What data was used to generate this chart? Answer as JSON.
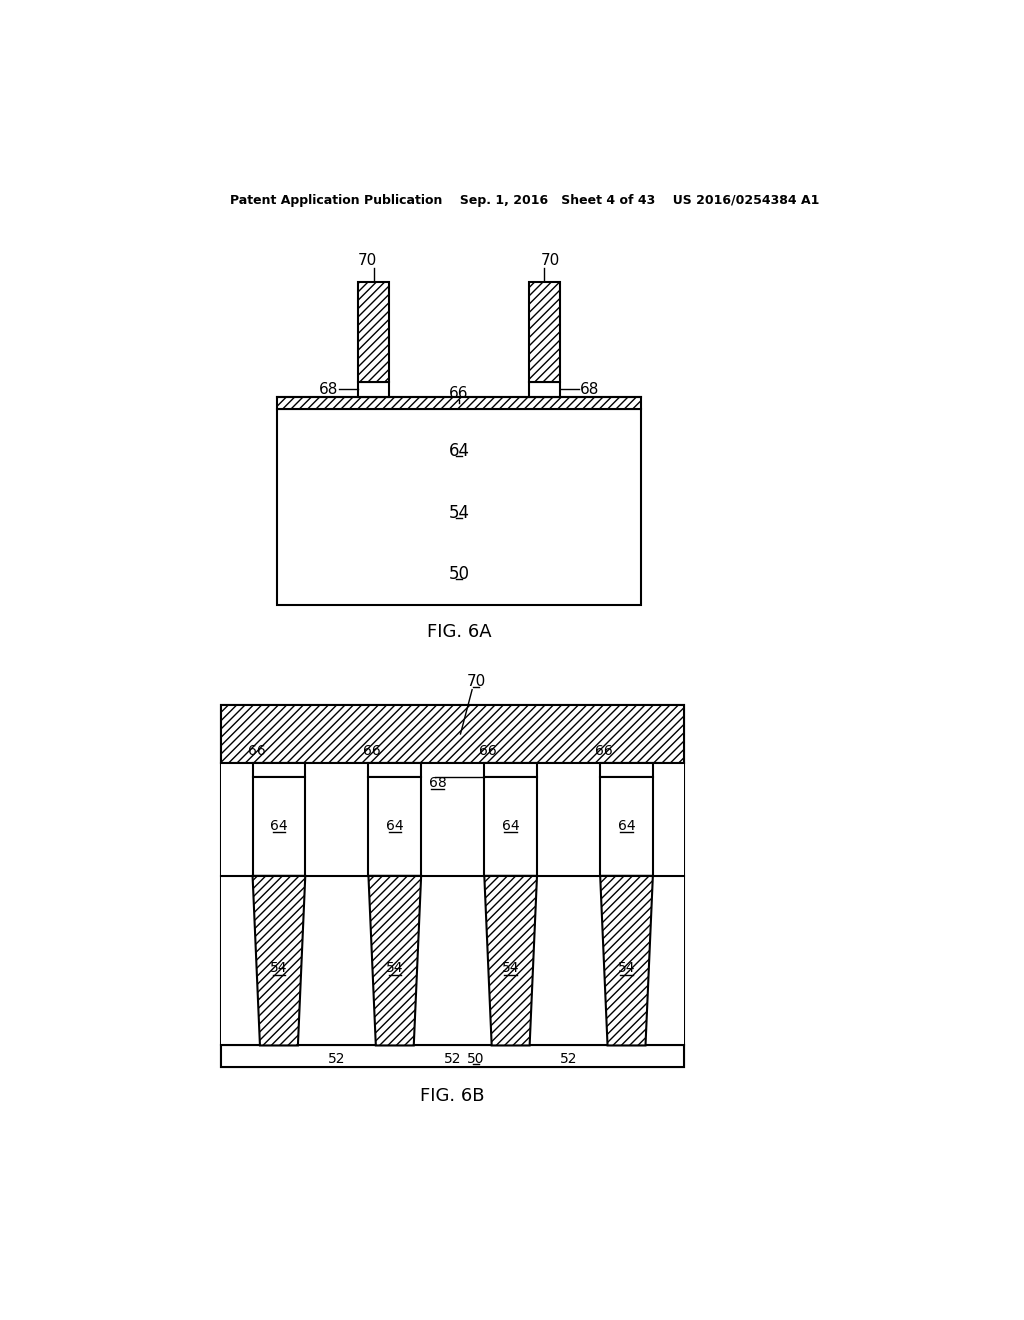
{
  "bg_color": "#ffffff",
  "header_text": "Patent Application Publication    Sep. 1, 2016   Sheet 4 of 43    US 2016/0254384 A1",
  "fig6a_label": "FIG. 6A",
  "fig6b_label": "FIG. 6B"
}
